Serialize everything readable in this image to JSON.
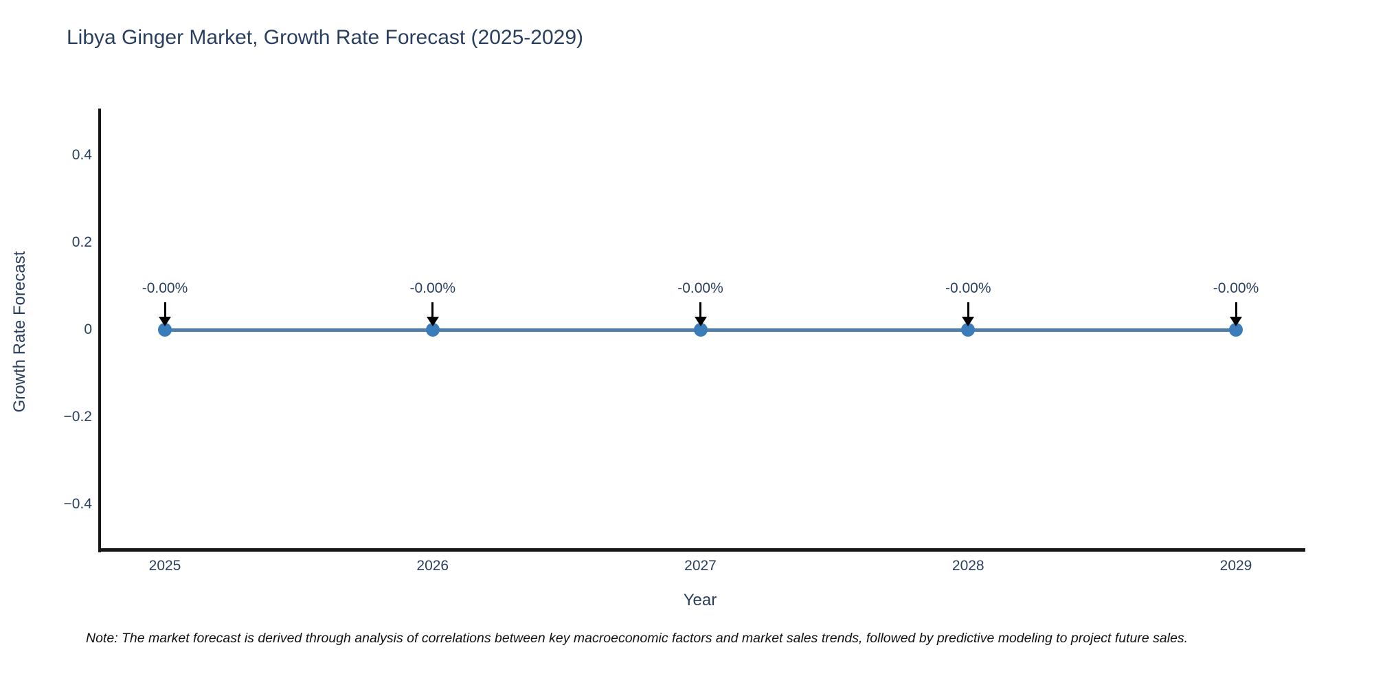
{
  "chart": {
    "note": "Note: The market forecast is derived through analysis of correlations between key macroeconomic factors and market sales trends, followed by predictive modeling to project future sales."
  },
  "chart_data": {
    "type": "line",
    "title": "Libya Ginger Market, Growth Rate Forecast (2025-2029)",
    "xlabel": "Year",
    "ylabel": "Growth Rate Forecast",
    "x": [
      2025,
      2026,
      2027,
      2028,
      2029
    ],
    "y": [
      0,
      0,
      0,
      0,
      0
    ],
    "point_labels": [
      "-0.00%",
      "-0.00%",
      "-0.00%",
      "-0.00%",
      "-0.00%"
    ],
    "x_ticks": [
      {
        "value": 2025,
        "label": "2025"
      },
      {
        "value": 2026,
        "label": "2026"
      },
      {
        "value": 2027,
        "label": "2027"
      },
      {
        "value": 2028,
        "label": "2028"
      },
      {
        "value": 2029,
        "label": "2029"
      }
    ],
    "y_ticks": [
      {
        "value": 0.4,
        "label": "0.4"
      },
      {
        "value": 0.2,
        "label": "0.2"
      },
      {
        "value": 0,
        "label": "0"
      },
      {
        "value": -0.2,
        "label": "−0.2"
      },
      {
        "value": -0.4,
        "label": "−0.4"
      }
    ],
    "ylim": [
      -0.5,
      0.5
    ],
    "grid": false,
    "legend": false,
    "colors": {
      "line": "#4e7fab",
      "marker": "#3b7cba",
      "axis": "#161616",
      "text": "#2a3f5f",
      "annotation_arrow": "#000000"
    }
  }
}
